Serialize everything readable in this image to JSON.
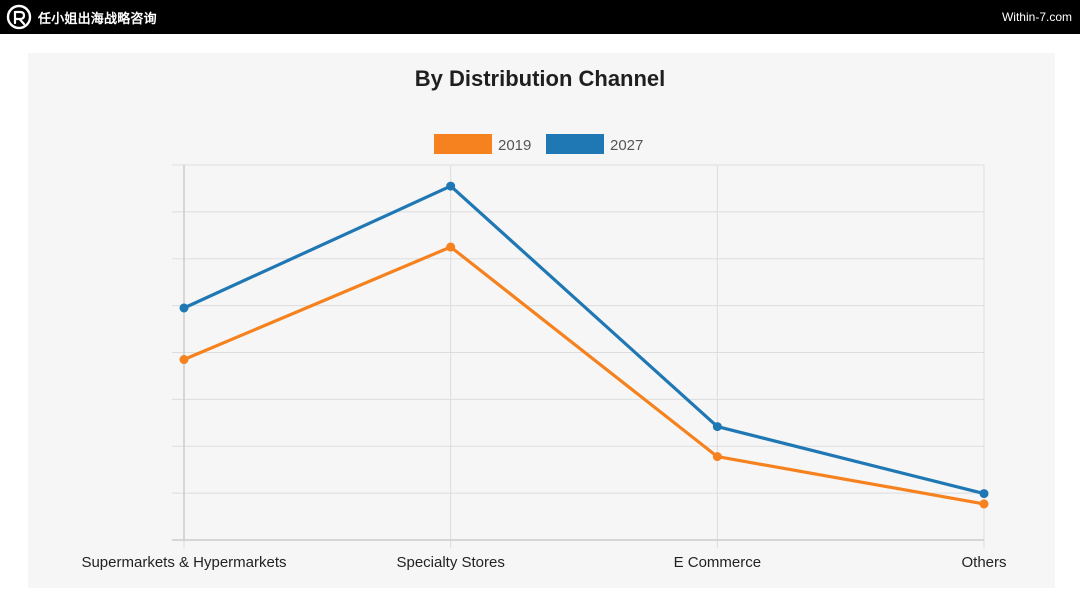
{
  "header": {
    "brand_name": "任小姐出海战略咨询",
    "site": "Within-7.com"
  },
  "icons": {
    "logo": "r-circle-logo-icon"
  },
  "colors": {
    "series_2019": "#f5821f",
    "series_2027": "#1f77b4",
    "grid": "#dddddd",
    "panel": "#f6f6f6"
  },
  "chart_data": {
    "type": "line",
    "title": "By Distribution Channel",
    "categories": [
      "Supermarkets & Hypermarkets",
      "Specialty Stores",
      "E Commerce",
      "Others"
    ],
    "series": [
      {
        "name": "2019",
        "values": [
          38.5,
          62.5,
          17.8,
          7.7
        ]
      },
      {
        "name": "2027",
        "values": [
          49.5,
          75.5,
          24.2,
          9.9
        ]
      }
    ],
    "ylim": [
      0,
      80
    ],
    "grid": true,
    "legend": "top-center",
    "xlabel": "",
    "ylabel": ""
  }
}
